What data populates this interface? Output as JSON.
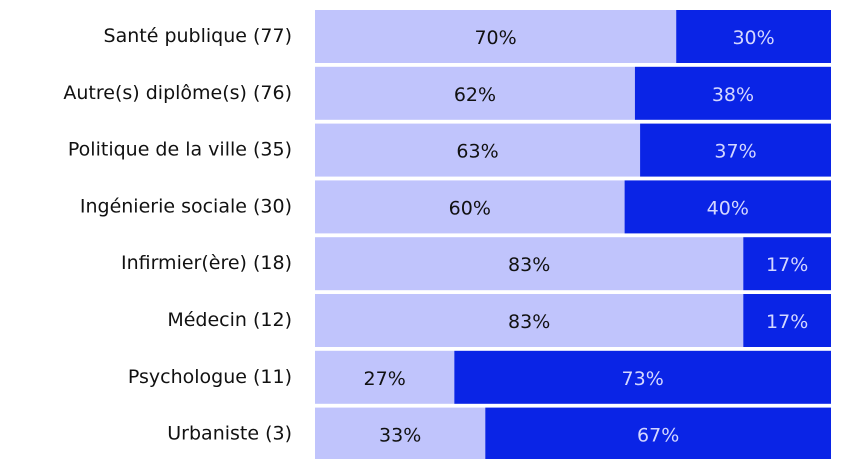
{
  "chart_data": {
    "type": "stacked-barh",
    "categories": [
      "Santé publique (77)",
      "Autre(s) diplôme(s) (76)",
      "Politique de la ville (35)",
      "Ingénierie sociale (30)",
      "Infirmier(ère) (18)",
      "Médecin (12)",
      "Psychologue (11)",
      "Urbaniste (3)"
    ],
    "xlim": [
      0,
      100
    ],
    "series": [
      {
        "color": "#c0c4fc",
        "values": [
          70,
          62,
          63,
          60,
          83,
          83,
          27,
          33
        ],
        "value_labels": [
          "70%",
          "62%",
          "63%",
          "60%",
          "83%",
          "83%",
          "27%",
          "33%"
        ]
      },
      {
        "color": "#0a24e6",
        "values": [
          30,
          38,
          37,
          40,
          17,
          17,
          73,
          67
        ],
        "value_labels": [
          "30%",
          "38%",
          "37%",
          "40%",
          "17%",
          "17%",
          "73%",
          "67%"
        ]
      }
    ]
  }
}
